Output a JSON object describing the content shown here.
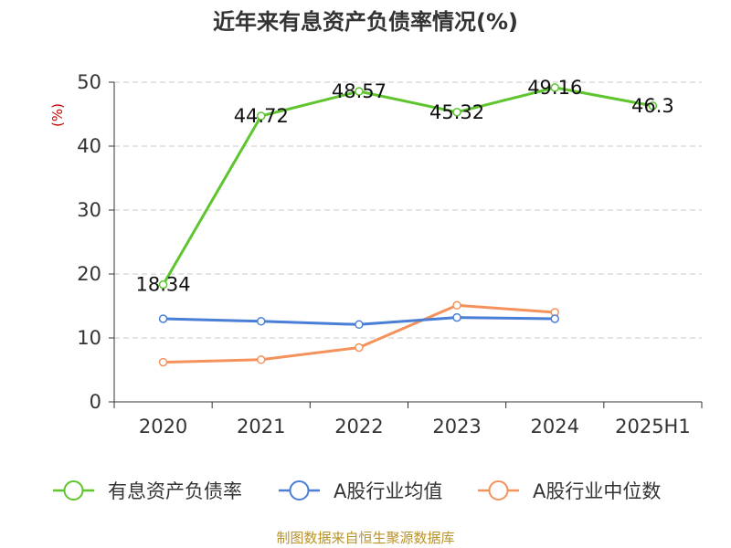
{
  "chart_data": {
    "type": "line",
    "title": "近年来有息资产负债率情况(%)",
    "ylabel": "(%)",
    "xlabel": "",
    "categories": [
      "2020",
      "2021",
      "2022",
      "2023",
      "2024",
      "2025H1"
    ],
    "ylim": [
      0,
      50
    ],
    "yticks": [
      0,
      10,
      20,
      30,
      40,
      50
    ],
    "grid": true,
    "legend_position": "bottom",
    "series": [
      {
        "name": "有息资产负债率",
        "color": "#5ec52e",
        "values": [
          18.34,
          44.72,
          48.57,
          45.32,
          49.16,
          46.3
        ],
        "labels": [
          "18.34",
          "44.72",
          "48.57",
          "45.32",
          "49.16",
          "46.3"
        ],
        "show_labels": true
      },
      {
        "name": "A股行业均值",
        "color": "#4a7fd6",
        "values": [
          13.0,
          12.6,
          12.1,
          13.2,
          13.0,
          null
        ],
        "show_labels": false
      },
      {
        "name": "A股行业中位数",
        "color": "#f5925b",
        "values": [
          6.2,
          6.6,
          8.5,
          15.1,
          14.0,
          null
        ],
        "show_labels": false
      }
    ]
  },
  "footer": {
    "source": "制图数据来自恒生聚源数据库"
  }
}
